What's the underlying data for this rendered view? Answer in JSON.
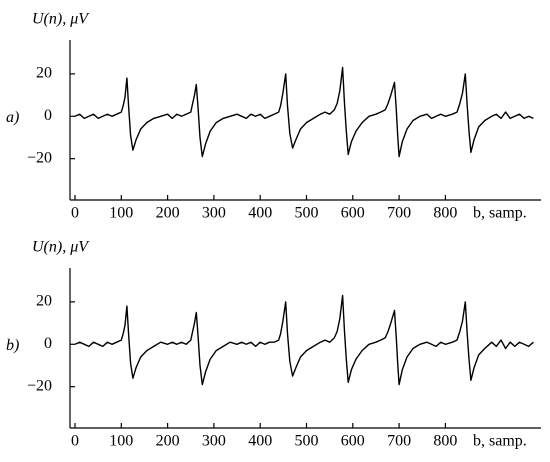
{
  "chart_data": [
    {
      "type": "line",
      "panel_label": "a)",
      "ylabel": "U(n), μV",
      "xlabel": "b, samp.",
      "color": "#000000",
      "xlim": [
        0,
        1000
      ],
      "ylim": [
        -39.5,
        36
      ],
      "xticks": [
        0,
        100,
        200,
        300,
        400,
        500,
        600,
        700,
        800
      ],
      "yticks": [
        {
          "value": -20,
          "label": "−20"
        },
        0,
        20
      ],
      "x": [
        0,
        10,
        20,
        30,
        40,
        50,
        60,
        70,
        80,
        90,
        100,
        104,
        108,
        112,
        116,
        120,
        125,
        132,
        142,
        155,
        170,
        185,
        200,
        210,
        220,
        230,
        240,
        250,
        254,
        258,
        262,
        266,
        270,
        275,
        282,
        292,
        305,
        320,
        335,
        350,
        360,
        370,
        380,
        390,
        400,
        410,
        420,
        430,
        440,
        444,
        449,
        455,
        459,
        464,
        470,
        477,
        487,
        500,
        515,
        530,
        540,
        550,
        560,
        566,
        572,
        578,
        582,
        586,
        590,
        597,
        607,
        620,
        635,
        650,
        660,
        670,
        676,
        682,
        690,
        694,
        697,
        700,
        707,
        717,
        730,
        745,
        760,
        770,
        780,
        790,
        800,
        815,
        825,
        831,
        837,
        843,
        847,
        851,
        855,
        862,
        872,
        885,
        900,
        910,
        920,
        930,
        940,
        950,
        960,
        970,
        980,
        990
      ],
      "values": [
        0,
        1,
        -1,
        0,
        1,
        -1,
        0,
        1,
        0,
        1,
        2,
        5,
        9,
        18,
        4,
        -9,
        -16,
        -11,
        -6,
        -3,
        -1,
        0,
        1,
        -1,
        1,
        0,
        1,
        2,
        6,
        10,
        15,
        3,
        -10,
        -19,
        -13,
        -7,
        -3,
        -1,
        0,
        1,
        0,
        -1,
        1,
        0,
        1,
        -1,
        0,
        1,
        2,
        5,
        11,
        20,
        5,
        -8,
        -15,
        -11,
        -6,
        -3,
        -1,
        1,
        2,
        1,
        3,
        6,
        12,
        23,
        6,
        -7,
        -18,
        -12,
        -7,
        -3,
        0,
        1,
        2,
        3,
        6,
        10,
        16,
        3,
        -9,
        -19,
        -12,
        -6,
        -2,
        0,
        1,
        -1,
        0,
        1,
        0,
        1,
        2,
        6,
        11,
        20,
        5,
        -7,
        -17,
        -11,
        -5,
        -2,
        0,
        1,
        -1,
        2,
        -1,
        0,
        1,
        -1,
        0,
        -1
      ]
    },
    {
      "type": "line",
      "panel_label": "b)",
      "ylabel": "U(n), μV",
      "xlabel": "b, samp.",
      "color": "#000000",
      "xlim": [
        0,
        1000
      ],
      "ylim": [
        -39.5,
        36
      ],
      "xticks": [
        0,
        100,
        200,
        300,
        400,
        500,
        600,
        700,
        800
      ],
      "yticks": [
        {
          "value": -20,
          "label": "−20"
        },
        0,
        20
      ],
      "x": [
        0,
        10,
        20,
        30,
        40,
        50,
        60,
        70,
        80,
        90,
        100,
        104,
        108,
        112,
        116,
        120,
        125,
        132,
        142,
        155,
        170,
        185,
        200,
        210,
        220,
        230,
        240,
        250,
        254,
        258,
        262,
        266,
        270,
        275,
        282,
        292,
        305,
        320,
        335,
        350,
        360,
        370,
        380,
        390,
        400,
        410,
        420,
        430,
        440,
        444,
        449,
        455,
        459,
        464,
        470,
        477,
        487,
        500,
        515,
        530,
        540,
        550,
        560,
        566,
        572,
        578,
        582,
        586,
        590,
        597,
        607,
        620,
        635,
        650,
        660,
        670,
        676,
        682,
        690,
        694,
        697,
        700,
        707,
        717,
        730,
        745,
        760,
        770,
        780,
        790,
        800,
        815,
        825,
        831,
        837,
        843,
        847,
        851,
        855,
        862,
        872,
        885,
        900,
        910,
        920,
        930,
        940,
        950,
        960,
        970,
        980,
        990
      ],
      "values": [
        0,
        1,
        0,
        -1,
        1,
        0,
        -1,
        1,
        0,
        1,
        2,
        5,
        9,
        18,
        4,
        -9,
        -16,
        -11,
        -6,
        -3,
        -1,
        1,
        0,
        1,
        0,
        1,
        0,
        2,
        6,
        10,
        15,
        3,
        -10,
        -19,
        -13,
        -7,
        -3,
        -1,
        1,
        0,
        1,
        0,
        1,
        -1,
        1,
        0,
        1,
        1,
        2,
        5,
        11,
        20,
        5,
        -8,
        -15,
        -11,
        -6,
        -3,
        -1,
        1,
        2,
        1,
        3,
        6,
        12,
        23,
        6,
        -7,
        -18,
        -12,
        -7,
        -3,
        0,
        1,
        2,
        3,
        6,
        10,
        16,
        3,
        -9,
        -19,
        -12,
        -6,
        -2,
        0,
        1,
        0,
        -1,
        1,
        0,
        1,
        2,
        6,
        11,
        20,
        5,
        -7,
        -17,
        -11,
        -5,
        -2,
        1,
        -1,
        2,
        -2,
        1,
        -1,
        1,
        0,
        -1,
        1
      ]
    }
  ]
}
